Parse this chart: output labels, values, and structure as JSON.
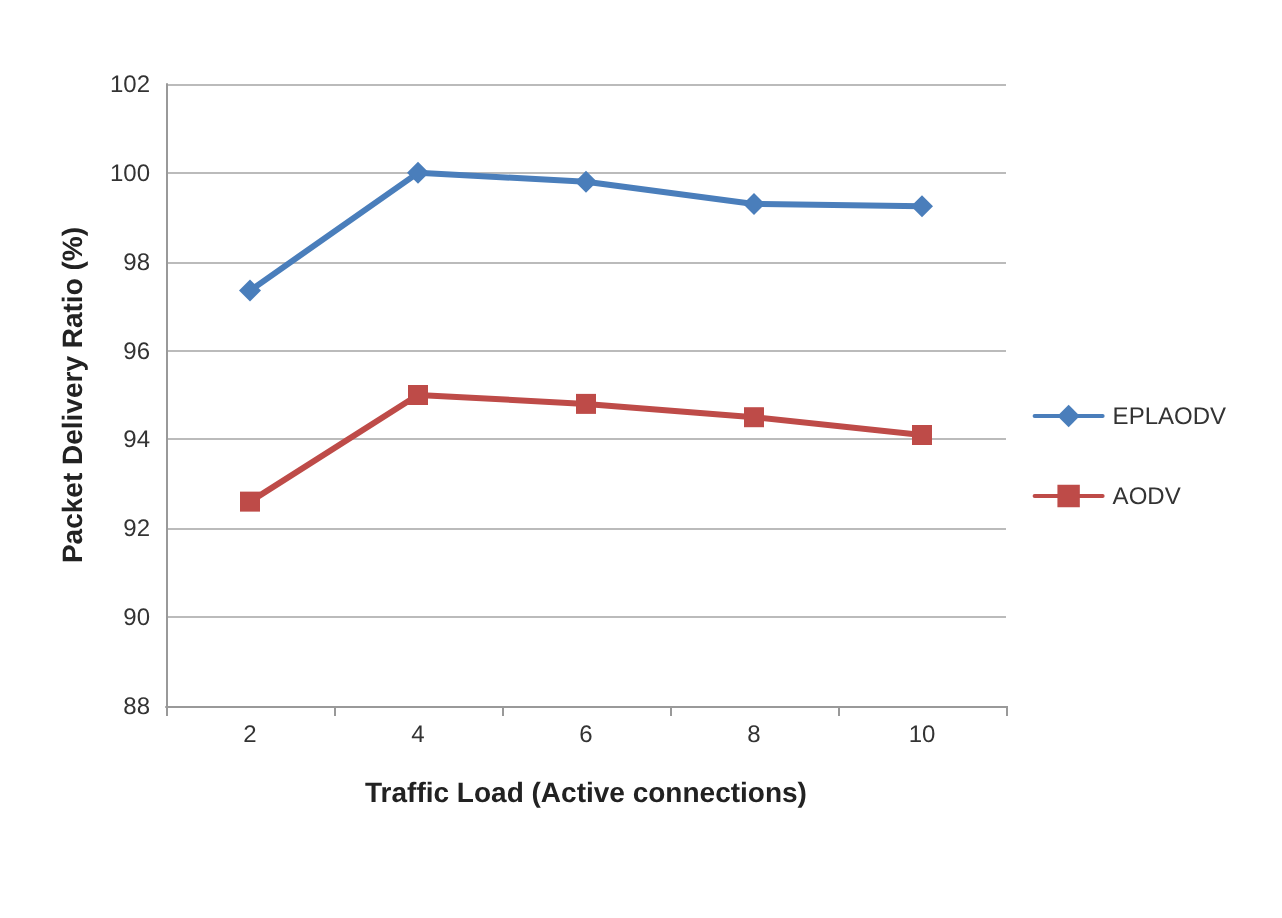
{
  "chart_data": {
    "type": "line",
    "xlabel": "Traffic Load (Active connections)",
    "ylabel": "Packet Delivery Ratio (%)",
    "categories": [
      "2",
      "4",
      "6",
      "8",
      "10"
    ],
    "series": [
      {
        "name": "EPLAODV",
        "color": "#4a7ebb",
        "marker": "diamond",
        "values": [
          97.35,
          100,
          99.8,
          99.3,
          99.25
        ]
      },
      {
        "name": "AODV",
        "color": "#be4b48",
        "marker": "square",
        "values": [
          92.6,
          95,
          94.8,
          94.5,
          94.1
        ]
      }
    ],
    "ylim": [
      88,
      102
    ],
    "yticks": [
      88,
      90,
      92,
      94,
      96,
      98,
      100,
      102
    ],
    "grid": "y",
    "legend": "right",
    "line_style": "solid"
  }
}
